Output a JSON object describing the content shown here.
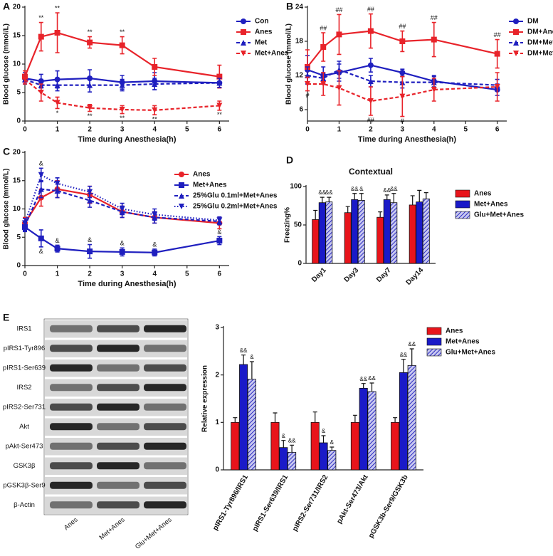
{
  "chart_data": [
    {
      "type": "line",
      "panel": "A",
      "y_label": "Blood glucose (mmol/L)",
      "x_label": "Time during Anesthesia(h)",
      "x": [
        0,
        0.5,
        1,
        2,
        3,
        4,
        6
      ],
      "xlim": [
        0,
        6.3
      ],
      "xticks": [
        0,
        1,
        2,
        3,
        4,
        5,
        6
      ],
      "ylim": [
        0,
        20
      ],
      "yticks": [
        0,
        5,
        10,
        15,
        20
      ],
      "grid": false,
      "legend": "right",
      "series": [
        {
          "name": "Con",
          "color": "#1f1fbf",
          "dash": false,
          "marker": "circle",
          "values": [
            7.5,
            7.0,
            7.3,
            7.5,
            6.8,
            7.0,
            6.7
          ],
          "errors": [
            1.0,
            1.2,
            1.5,
            1.5,
            1.2,
            1.5,
            0.8
          ],
          "annotations": [
            null,
            null,
            null,
            null,
            null,
            null,
            null
          ],
          "annotation_position": "above"
        },
        {
          "name": "Anes",
          "color": "#e8232a",
          "dash": false,
          "marker": "square",
          "values": [
            7.8,
            14.8,
            15.5,
            13.8,
            13.3,
            9.5,
            7.8
          ],
          "errors": [
            1.0,
            2.5,
            3.5,
            1.0,
            1.5,
            1.5,
            2.0
          ],
          "annotations": [
            null,
            "**",
            "**",
            "**",
            "**",
            null,
            null
          ],
          "annotation_position": "above"
        },
        {
          "name": "Met",
          "color": "#1f1fbf",
          "dash": true,
          "marker": "triangle",
          "values": [
            7.3,
            6.3,
            6.3,
            6.3,
            6.3,
            6.5,
            6.7
          ],
          "errors": [
            0.8,
            1.0,
            1.0,
            1.2,
            1.0,
            1.0,
            0.8
          ],
          "annotations": [
            null,
            null,
            null,
            null,
            null,
            null,
            null
          ],
          "annotation_position": "above"
        },
        {
          "name": "Met+Anes",
          "color": "#e8232a",
          "dash": true,
          "marker": "triangle-down",
          "values": [
            7.3,
            5.0,
            3.2,
            2.3,
            2.0,
            1.9,
            2.7
          ],
          "errors": [
            0.8,
            1.5,
            1.0,
            0.6,
            0.7,
            0.8,
            0.8
          ],
          "annotations": [
            null,
            null,
            "*",
            "**",
            "**",
            "**",
            "**"
          ],
          "annotation_position": "below"
        }
      ]
    },
    {
      "type": "line",
      "panel": "B",
      "y_label": "Blood glucose (mmol/L)",
      "x_label": "Time during Anesthesia(h)",
      "x": [
        0,
        0.5,
        1,
        2,
        3,
        4,
        6
      ],
      "xlim": [
        0,
        6.3
      ],
      "xticks": [
        0,
        1,
        2,
        3,
        4,
        5,
        6
      ],
      "ylim": [
        4,
        24
      ],
      "yticks": [
        6,
        12,
        18,
        24
      ],
      "grid": false,
      "legend": "right",
      "series": [
        {
          "name": "DM",
          "color": "#1f1fbf",
          "dash": false,
          "marker": "circle",
          "values": [
            13.0,
            12.0,
            12.5,
            13.8,
            12.5,
            11.0,
            9.5
          ],
          "errors": [
            2.5,
            1.5,
            1.5,
            1.2,
            0.6,
            1.0,
            1.0
          ],
          "annotations": [
            null,
            null,
            null,
            null,
            null,
            null,
            null
          ],
          "annotation_position": "above"
        },
        {
          "name": "DM+Anes",
          "color": "#e8232a",
          "dash": false,
          "marker": "square",
          "values": [
            13.5,
            17.0,
            19.2,
            19.8,
            18.0,
            18.3,
            15.8
          ],
          "errors": [
            3.0,
            2.5,
            3.5,
            3.0,
            1.8,
            3.0,
            2.5
          ],
          "annotations": [
            null,
            "##",
            "##",
            "##",
            "##",
            "##",
            "##"
          ],
          "annotation_position": "above"
        },
        {
          "name": "DM+Met",
          "color": "#1f1fbf",
          "dash": true,
          "marker": "triangle",
          "values": [
            12.0,
            11.5,
            13.0,
            11.0,
            10.8,
            10.8,
            10.3
          ],
          "errors": [
            1.5,
            1.0,
            1.5,
            1.0,
            1.0,
            1.0,
            1.0
          ],
          "annotations": [
            null,
            null,
            null,
            null,
            null,
            null,
            null
          ],
          "annotation_position": "above"
        },
        {
          "name": "DM+Met+Anes",
          "color": "#e8232a",
          "dash": true,
          "marker": "triangle-down",
          "values": [
            10.5,
            10.5,
            9.8,
            7.5,
            8.3,
            9.5,
            10.0
          ],
          "errors": [
            1.2,
            2.0,
            3.0,
            2.5,
            3.5,
            2.0,
            2.5
          ],
          "annotations": [
            "#",
            null,
            null,
            "##",
            "#",
            null,
            null
          ],
          "annotation_position": "below"
        }
      ]
    },
    {
      "type": "line",
      "panel": "C",
      "y_label": "Blood glucose (mmol/L)",
      "x_label": "Time during Anesthesia(h)",
      "x": [
        0,
        0.5,
        1,
        2,
        3,
        4,
        6
      ],
      "xlim": [
        0,
        6.3
      ],
      "xticks": [
        0,
        1,
        2,
        3,
        4,
        5,
        6
      ],
      "ylim": [
        0,
        20
      ],
      "yticks": [
        0,
        5,
        10,
        15,
        20
      ],
      "grid": false,
      "legend": "inside",
      "series": [
        {
          "name": "Anes",
          "color": "#e8232a",
          "dash": false,
          "marker": "circle",
          "values": [
            7.5,
            12.0,
            13.5,
            12.5,
            9.5,
            8.5,
            7.5
          ],
          "errors": [
            1.0,
            1.5,
            1.5,
            1.5,
            1.0,
            1.0,
            1.0
          ],
          "annotations": [
            null,
            null,
            null,
            null,
            null,
            null,
            null
          ],
          "annotation_position": "above"
        },
        {
          "name": "Met+Anes",
          "color": "#1f1fbf",
          "dash": false,
          "marker": "square",
          "values": [
            6.8,
            4.8,
            3.0,
            2.5,
            2.4,
            2.3,
            4.4
          ],
          "errors": [
            0.8,
            1.5,
            0.6,
            1.2,
            0.7,
            0.6,
            0.7
          ],
          "annotations": [
            null,
            "&",
            "&",
            "&",
            "&",
            "&",
            "&"
          ],
          "annotation_position": "mixed"
        },
        {
          "name": "25%Glu 0.1ml+Met+Anes",
          "color": "#1f1fbf",
          "dash": true,
          "marker": "triangle",
          "values": [
            7.0,
            13.5,
            13.2,
            11.5,
            9.5,
            8.5,
            7.8
          ],
          "errors": [
            0.8,
            1.5,
            1.2,
            1.2,
            1.0,
            1.0,
            0.6
          ],
          "annotations": [
            null,
            null,
            null,
            null,
            null,
            null,
            null
          ],
          "annotation_position": "above"
        },
        {
          "name": "25%Glu 0.2ml+Met+Anes",
          "color": "#1f1fbf",
          "dash": "dot",
          "marker": "triangle-down",
          "values": [
            7.5,
            16.0,
            14.5,
            13.0,
            10.0,
            9.0,
            8.0
          ],
          "errors": [
            0.8,
            1.2,
            1.0,
            1.0,
            1.0,
            1.0,
            0.6
          ],
          "annotations": [
            null,
            "&",
            null,
            null,
            null,
            null,
            null
          ],
          "annotation_position": "above"
        }
      ]
    },
    {
      "type": "bar",
      "panel": "D",
      "title": "Contextual",
      "y_label": "Freezing%",
      "categories": [
        "Day1",
        "Day3",
        "Day7",
        "Day14"
      ],
      "ylim": [
        0,
        100
      ],
      "yticks": [
        0,
        50,
        100
      ],
      "grid": false,
      "legend": "right",
      "label_rotation": -45,
      "series": [
        {
          "name": "Anes",
          "color": "#e8141b",
          "pattern": "solid",
          "values": [
            57,
            66,
            60,
            76
          ],
          "errors": [
            12,
            8,
            7,
            12
          ],
          "annotations": [
            null,
            null,
            null,
            null
          ]
        },
        {
          "name": "Met+Anes",
          "color": "#1a1ac8",
          "pattern": "solid",
          "values": [
            79,
            83,
            83,
            80
          ],
          "errors": [
            7,
            8,
            6,
            15
          ],
          "annotations": [
            "&&",
            "&&",
            "&&",
            null
          ]
        },
        {
          "name": "Glu+Met+Anes",
          "color": "#3a3ad0",
          "pattern": "hatch",
          "values": [
            80,
            82,
            79,
            84
          ],
          "errors": [
            6,
            9,
            12,
            8
          ],
          "annotations": [
            "&&",
            "&",
            "&&",
            null
          ]
        }
      ]
    },
    {
      "type": "bar",
      "y_label": "Relative expression",
      "categories": [
        "pIRS1-Tyr896/IRS1",
        "pIRS1-Ser639/IRS1",
        "pIRS2-Ser731/IRS2",
        "pAkt-Ser473/Akt",
        "pGSK3b-Ser9/GSK3b"
      ],
      "ylim": [
        0,
        3
      ],
      "yticks": [
        0,
        1,
        2,
        3
      ],
      "grid": false,
      "legend": "right",
      "label_rotation": -60,
      "series": [
        {
          "name": "Anes",
          "color": "#e8141b",
          "pattern": "solid",
          "values": [
            1.0,
            1.0,
            1.0,
            1.0,
            1.0
          ],
          "errors": [
            0.1,
            0.2,
            0.22,
            0.15,
            0.1
          ],
          "annotations": [
            null,
            null,
            null,
            null,
            null
          ]
        },
        {
          "name": "Met+Anes",
          "color": "#1a1ac8",
          "pattern": "solid",
          "values": [
            2.22,
            0.47,
            0.57,
            1.72,
            2.05
          ],
          "errors": [
            0.2,
            0.15,
            0.15,
            0.1,
            0.28
          ],
          "annotations": [
            "&&",
            "&",
            "&",
            "&&",
            "&&"
          ]
        },
        {
          "name": "Glu+Met+Anes",
          "color": "#3a3ad0",
          "pattern": "hatch",
          "values": [
            1.91,
            0.37,
            0.41,
            1.65,
            2.2
          ],
          "errors": [
            0.37,
            0.15,
            0.07,
            0.18,
            0.35
          ],
          "annotations": [
            "&",
            "&&",
            "&",
            "&&",
            "&&"
          ]
        }
      ]
    }
  ],
  "western_blot": {
    "panel": "E",
    "rows": [
      "IRS1",
      "pIRS1-Tyr896",
      "pIRS1-Ser639",
      "IRS2",
      "pIRS2-Ser731",
      "Akt",
      "pAkt-Ser473",
      "GSK3β",
      "pGSK3β-Ser9",
      "β-Actin"
    ],
    "lanes": [
      "Anes",
      "Met+Anes",
      "Glu+Met+Anes"
    ]
  }
}
